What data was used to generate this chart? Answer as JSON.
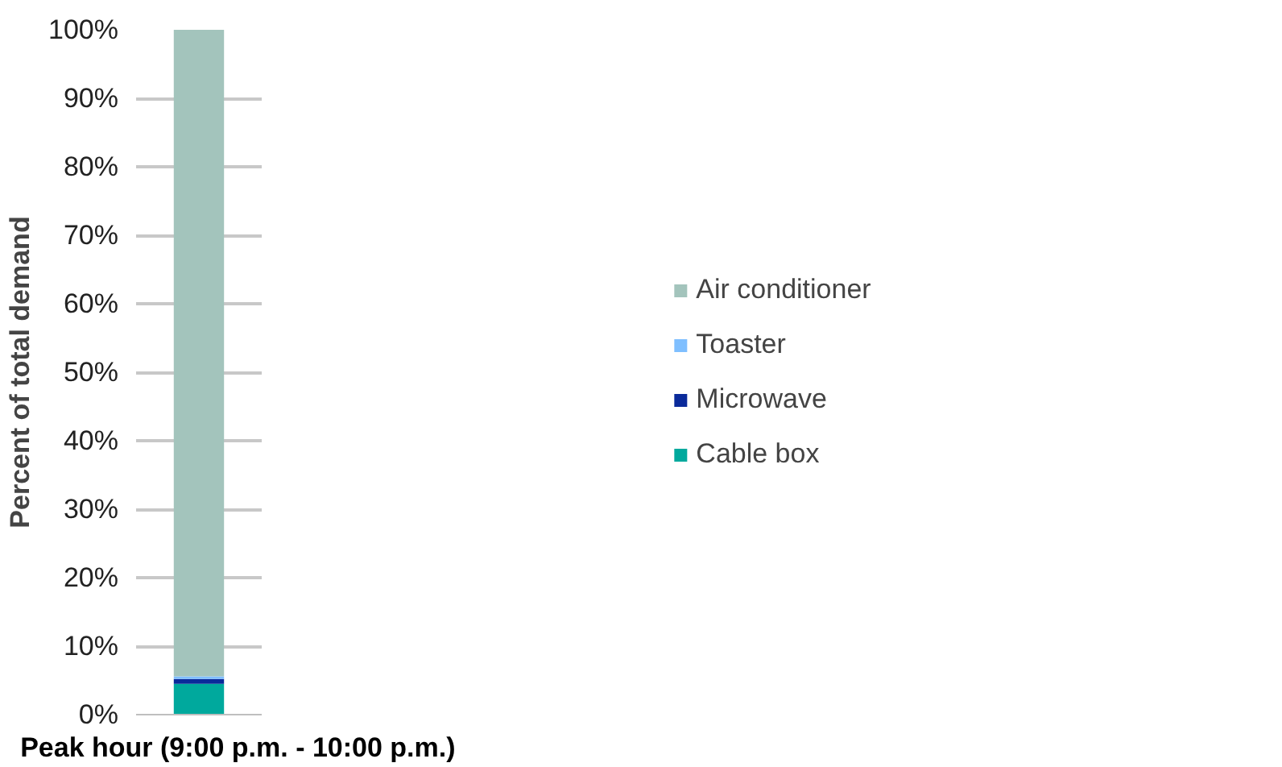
{
  "chart_data": {
    "type": "bar",
    "stacked": true,
    "categories": [
      "Peak hour (9:00 p.m. - 10:00 p.m.)"
    ],
    "ylabel": "Percent of total demand",
    "series": [
      {
        "name": "Cable box",
        "color": "#00a99d",
        "values": [
          4.5
        ]
      },
      {
        "name": "Microwave",
        "color": "#0a2a9a",
        "values": [
          0.7
        ]
      },
      {
        "name": "Toaster",
        "color": "#7fbfff",
        "values": [
          0.4
        ]
      },
      {
        "name": "Air conditioner",
        "color": "#a3c4bc",
        "values": [
          94.4
        ]
      }
    ],
    "ylim": [
      0,
      100
    ],
    "yticks": [
      {
        "value": 0,
        "label": "0%"
      },
      {
        "value": 10,
        "label": "10%"
      },
      {
        "value": 20,
        "label": "20%"
      },
      {
        "value": 30,
        "label": "30%"
      },
      {
        "value": 40,
        "label": "40%"
      },
      {
        "value": 50,
        "label": "50%"
      },
      {
        "value": 60,
        "label": "60%"
      },
      {
        "value": 70,
        "label": "70%"
      },
      {
        "value": 80,
        "label": "80%"
      },
      {
        "value": 90,
        "label": "90%"
      },
      {
        "value": 100,
        "label": "100%"
      }
    ],
    "grid": "y",
    "legend": "right"
  }
}
